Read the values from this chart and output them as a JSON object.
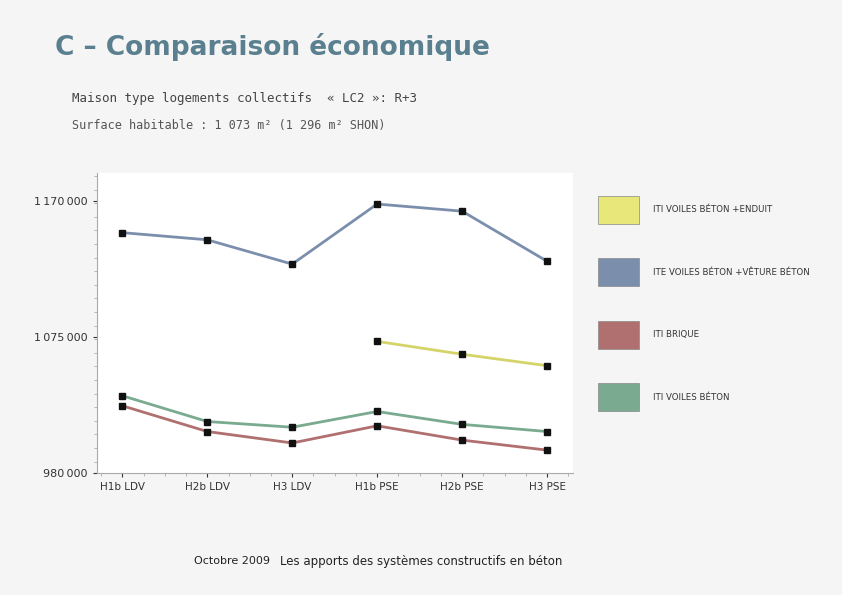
{
  "title": "C – Comparaison économique",
  "subtitle1": "Maison type logements collectifs  « LC2 »: R+3",
  "subtitle2": "Surface habitable : 1 073 m² (1 296 m² SHON)",
  "categories": [
    "H1b LDV",
    "H2b LDV",
    "H3 LDV",
    "H1b PSE",
    "H2b PSE",
    "H3 PSE"
  ],
  "ylim": [
    980000,
    1190000
  ],
  "yticks": [
    980000,
    1075000,
    1170000
  ],
  "series": [
    {
      "label": "ITI VOILES BÉTON +ENDUIT",
      "linecolor": "#d4d46a",
      "fillcolor": "#e8e87a",
      "values": [
        null,
        null,
        null,
        1072000,
        1063000,
        1055000
      ],
      "zorder": 3,
      "lw": 2.0
    },
    {
      "label": "ITE VOILES BÉTON +VÊTURE BÉTON",
      "linecolor": "#7b8fad",
      "fillcolor": "#7b8fad",
      "values": [
        1148000,
        1143000,
        1126000,
        1168000,
        1163000,
        1128000
      ],
      "zorder": 2,
      "lw": 2.0
    },
    {
      "label": "ITI BRIQUE",
      "linecolor": "#b07070",
      "fillcolor": "#b07070",
      "values": [
        1027000,
        1009000,
        1001000,
        1013000,
        1003000,
        996000
      ],
      "zorder": 2,
      "lw": 2.0
    },
    {
      "label": "ITI VOILES BÉTON",
      "linecolor": "#7aaa90",
      "fillcolor": "#7aaa90",
      "values": [
        1034000,
        1016000,
        1012000,
        1023000,
        1014000,
        1009000
      ],
      "zorder": 2,
      "lw": 2.0
    }
  ],
  "background_color": "#f5f5f5",
  "title_color": "#5a8090",
  "footer_bg_color": "#7a9aaa",
  "footer_left_color": "#4a6a7a",
  "footer_text1": "Octobre 2009",
  "footer_text2": "Les apports des systèmes constructifs en béton"
}
